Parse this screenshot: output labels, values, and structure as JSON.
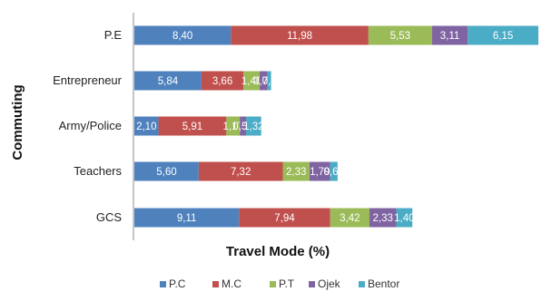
{
  "chart_data": {
    "type": "bar",
    "orientation": "horizontal",
    "stacked": true,
    "categories": [
      "P.E",
      "Entrepreneur",
      "Army/Police",
      "Teachers",
      "GCS"
    ],
    "series": [
      {
        "name": "P.C",
        "color": "#4f81bd",
        "values": [
          8.4,
          5.84,
          2.1,
          5.6,
          9.11
        ],
        "labels": [
          "8,40",
          "5,84",
          "2,10",
          "5,60",
          "9,11"
        ]
      },
      {
        "name": "M.C",
        "color": "#c0504d",
        "values": [
          11.98,
          3.66,
          5.91,
          7.32,
          7.94
        ],
        "labels": [
          "11,98",
          "3,66",
          "5,91",
          "7,32",
          "7,94"
        ]
      },
      {
        "name": "P.T",
        "color": "#9bbb59",
        "values": [
          5.53,
          1.4,
          1.17,
          2.33,
          3.42
        ],
        "labels": [
          "5,53",
          "1,40",
          "1,17",
          "2,33",
          "3,42"
        ]
      },
      {
        "name": "Ojek",
        "color": "#8064a2",
        "values": [
          3.11,
          0.7,
          0.54,
          1.79,
          2.33
        ],
        "labels": [
          "3,11",
          "0,70",
          "0,54",
          "1,79",
          "2,33"
        ]
      },
      {
        "name": "Bentor",
        "color": "#4bacc6",
        "values": [
          6.15,
          0.3,
          1.32,
          0.65,
          1.4
        ],
        "labels": [
          "6,15",
          "0,3",
          "1,32",
          "0,65",
          "1,40"
        ]
      }
    ],
    "xlabel": "Travel Mode (%)",
    "ylabel": "Commuting",
    "xlim": [
      0,
      35.17
    ],
    "grid": false,
    "legend": "bottom"
  }
}
